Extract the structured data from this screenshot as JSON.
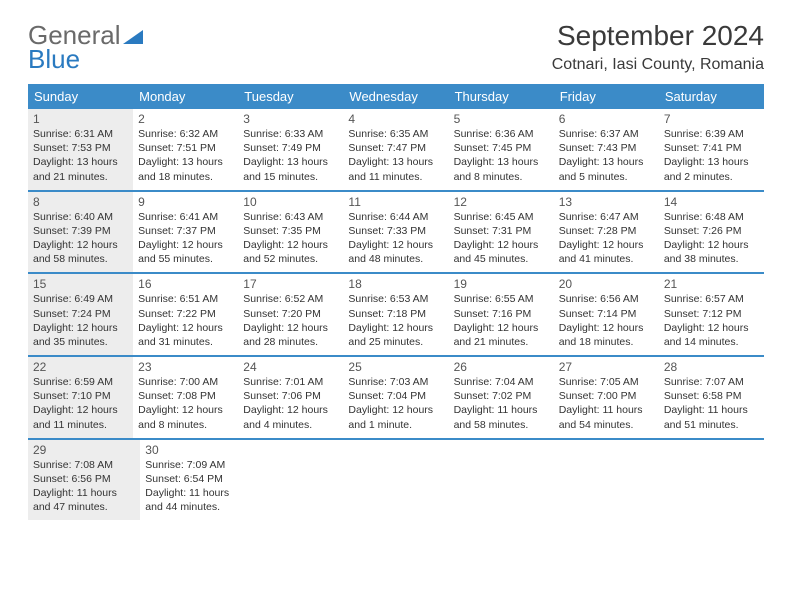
{
  "brand": {
    "part1": "General",
    "part2": "Blue"
  },
  "title": "September 2024",
  "location": "Cotnari, Iasi County, Romania",
  "colors": {
    "header_bg": "#3b8bc8",
    "header_text": "#ffffff",
    "shaded_bg": "#ededed",
    "border": "#3b8bc8",
    "body_text": "#333333",
    "title_text": "#3a3a3a",
    "logo_gray": "#6a6a6a",
    "logo_blue": "#2a7ac0"
  },
  "weekdays": [
    "Sunday",
    "Monday",
    "Tuesday",
    "Wednesday",
    "Thursday",
    "Friday",
    "Saturday"
  ],
  "weeks": [
    [
      {
        "day": "1",
        "shaded": true,
        "sunrise": "Sunrise: 6:31 AM",
        "sunset": "Sunset: 7:53 PM",
        "daylight1": "Daylight: 13 hours",
        "daylight2": "and 21 minutes."
      },
      {
        "day": "2",
        "shaded": false,
        "sunrise": "Sunrise: 6:32 AM",
        "sunset": "Sunset: 7:51 PM",
        "daylight1": "Daylight: 13 hours",
        "daylight2": "and 18 minutes."
      },
      {
        "day": "3",
        "shaded": false,
        "sunrise": "Sunrise: 6:33 AM",
        "sunset": "Sunset: 7:49 PM",
        "daylight1": "Daylight: 13 hours",
        "daylight2": "and 15 minutes."
      },
      {
        "day": "4",
        "shaded": false,
        "sunrise": "Sunrise: 6:35 AM",
        "sunset": "Sunset: 7:47 PM",
        "daylight1": "Daylight: 13 hours",
        "daylight2": "and 11 minutes."
      },
      {
        "day": "5",
        "shaded": false,
        "sunrise": "Sunrise: 6:36 AM",
        "sunset": "Sunset: 7:45 PM",
        "daylight1": "Daylight: 13 hours",
        "daylight2": "and 8 minutes."
      },
      {
        "day": "6",
        "shaded": false,
        "sunrise": "Sunrise: 6:37 AM",
        "sunset": "Sunset: 7:43 PM",
        "daylight1": "Daylight: 13 hours",
        "daylight2": "and 5 minutes."
      },
      {
        "day": "7",
        "shaded": false,
        "sunrise": "Sunrise: 6:39 AM",
        "sunset": "Sunset: 7:41 PM",
        "daylight1": "Daylight: 13 hours",
        "daylight2": "and 2 minutes."
      }
    ],
    [
      {
        "day": "8",
        "shaded": true,
        "sunrise": "Sunrise: 6:40 AM",
        "sunset": "Sunset: 7:39 PM",
        "daylight1": "Daylight: 12 hours",
        "daylight2": "and 58 minutes."
      },
      {
        "day": "9",
        "shaded": false,
        "sunrise": "Sunrise: 6:41 AM",
        "sunset": "Sunset: 7:37 PM",
        "daylight1": "Daylight: 12 hours",
        "daylight2": "and 55 minutes."
      },
      {
        "day": "10",
        "shaded": false,
        "sunrise": "Sunrise: 6:43 AM",
        "sunset": "Sunset: 7:35 PM",
        "daylight1": "Daylight: 12 hours",
        "daylight2": "and 52 minutes."
      },
      {
        "day": "11",
        "shaded": false,
        "sunrise": "Sunrise: 6:44 AM",
        "sunset": "Sunset: 7:33 PM",
        "daylight1": "Daylight: 12 hours",
        "daylight2": "and 48 minutes."
      },
      {
        "day": "12",
        "shaded": false,
        "sunrise": "Sunrise: 6:45 AM",
        "sunset": "Sunset: 7:31 PM",
        "daylight1": "Daylight: 12 hours",
        "daylight2": "and 45 minutes."
      },
      {
        "day": "13",
        "shaded": false,
        "sunrise": "Sunrise: 6:47 AM",
        "sunset": "Sunset: 7:28 PM",
        "daylight1": "Daylight: 12 hours",
        "daylight2": "and 41 minutes."
      },
      {
        "day": "14",
        "shaded": false,
        "sunrise": "Sunrise: 6:48 AM",
        "sunset": "Sunset: 7:26 PM",
        "daylight1": "Daylight: 12 hours",
        "daylight2": "and 38 minutes."
      }
    ],
    [
      {
        "day": "15",
        "shaded": true,
        "sunrise": "Sunrise: 6:49 AM",
        "sunset": "Sunset: 7:24 PM",
        "daylight1": "Daylight: 12 hours",
        "daylight2": "and 35 minutes."
      },
      {
        "day": "16",
        "shaded": false,
        "sunrise": "Sunrise: 6:51 AM",
        "sunset": "Sunset: 7:22 PM",
        "daylight1": "Daylight: 12 hours",
        "daylight2": "and 31 minutes."
      },
      {
        "day": "17",
        "shaded": false,
        "sunrise": "Sunrise: 6:52 AM",
        "sunset": "Sunset: 7:20 PM",
        "daylight1": "Daylight: 12 hours",
        "daylight2": "and 28 minutes."
      },
      {
        "day": "18",
        "shaded": false,
        "sunrise": "Sunrise: 6:53 AM",
        "sunset": "Sunset: 7:18 PM",
        "daylight1": "Daylight: 12 hours",
        "daylight2": "and 25 minutes."
      },
      {
        "day": "19",
        "shaded": false,
        "sunrise": "Sunrise: 6:55 AM",
        "sunset": "Sunset: 7:16 PM",
        "daylight1": "Daylight: 12 hours",
        "daylight2": "and 21 minutes."
      },
      {
        "day": "20",
        "shaded": false,
        "sunrise": "Sunrise: 6:56 AM",
        "sunset": "Sunset: 7:14 PM",
        "daylight1": "Daylight: 12 hours",
        "daylight2": "and 18 minutes."
      },
      {
        "day": "21",
        "shaded": false,
        "sunrise": "Sunrise: 6:57 AM",
        "sunset": "Sunset: 7:12 PM",
        "daylight1": "Daylight: 12 hours",
        "daylight2": "and 14 minutes."
      }
    ],
    [
      {
        "day": "22",
        "shaded": true,
        "sunrise": "Sunrise: 6:59 AM",
        "sunset": "Sunset: 7:10 PM",
        "daylight1": "Daylight: 12 hours",
        "daylight2": "and 11 minutes."
      },
      {
        "day": "23",
        "shaded": false,
        "sunrise": "Sunrise: 7:00 AM",
        "sunset": "Sunset: 7:08 PM",
        "daylight1": "Daylight: 12 hours",
        "daylight2": "and 8 minutes."
      },
      {
        "day": "24",
        "shaded": false,
        "sunrise": "Sunrise: 7:01 AM",
        "sunset": "Sunset: 7:06 PM",
        "daylight1": "Daylight: 12 hours",
        "daylight2": "and 4 minutes."
      },
      {
        "day": "25",
        "shaded": false,
        "sunrise": "Sunrise: 7:03 AM",
        "sunset": "Sunset: 7:04 PM",
        "daylight1": "Daylight: 12 hours",
        "daylight2": "and 1 minute."
      },
      {
        "day": "26",
        "shaded": false,
        "sunrise": "Sunrise: 7:04 AM",
        "sunset": "Sunset: 7:02 PM",
        "daylight1": "Daylight: 11 hours",
        "daylight2": "and 58 minutes."
      },
      {
        "day": "27",
        "shaded": false,
        "sunrise": "Sunrise: 7:05 AM",
        "sunset": "Sunset: 7:00 PM",
        "daylight1": "Daylight: 11 hours",
        "daylight2": "and 54 minutes."
      },
      {
        "day": "28",
        "shaded": false,
        "sunrise": "Sunrise: 7:07 AM",
        "sunset": "Sunset: 6:58 PM",
        "daylight1": "Daylight: 11 hours",
        "daylight2": "and 51 minutes."
      }
    ],
    [
      {
        "day": "29",
        "shaded": true,
        "sunrise": "Sunrise: 7:08 AM",
        "sunset": "Sunset: 6:56 PM",
        "daylight1": "Daylight: 11 hours",
        "daylight2": "and 47 minutes."
      },
      {
        "day": "30",
        "shaded": false,
        "sunrise": "Sunrise: 7:09 AM",
        "sunset": "Sunset: 6:54 PM",
        "daylight1": "Daylight: 11 hours",
        "daylight2": "and 44 minutes."
      },
      null,
      null,
      null,
      null,
      null
    ]
  ]
}
